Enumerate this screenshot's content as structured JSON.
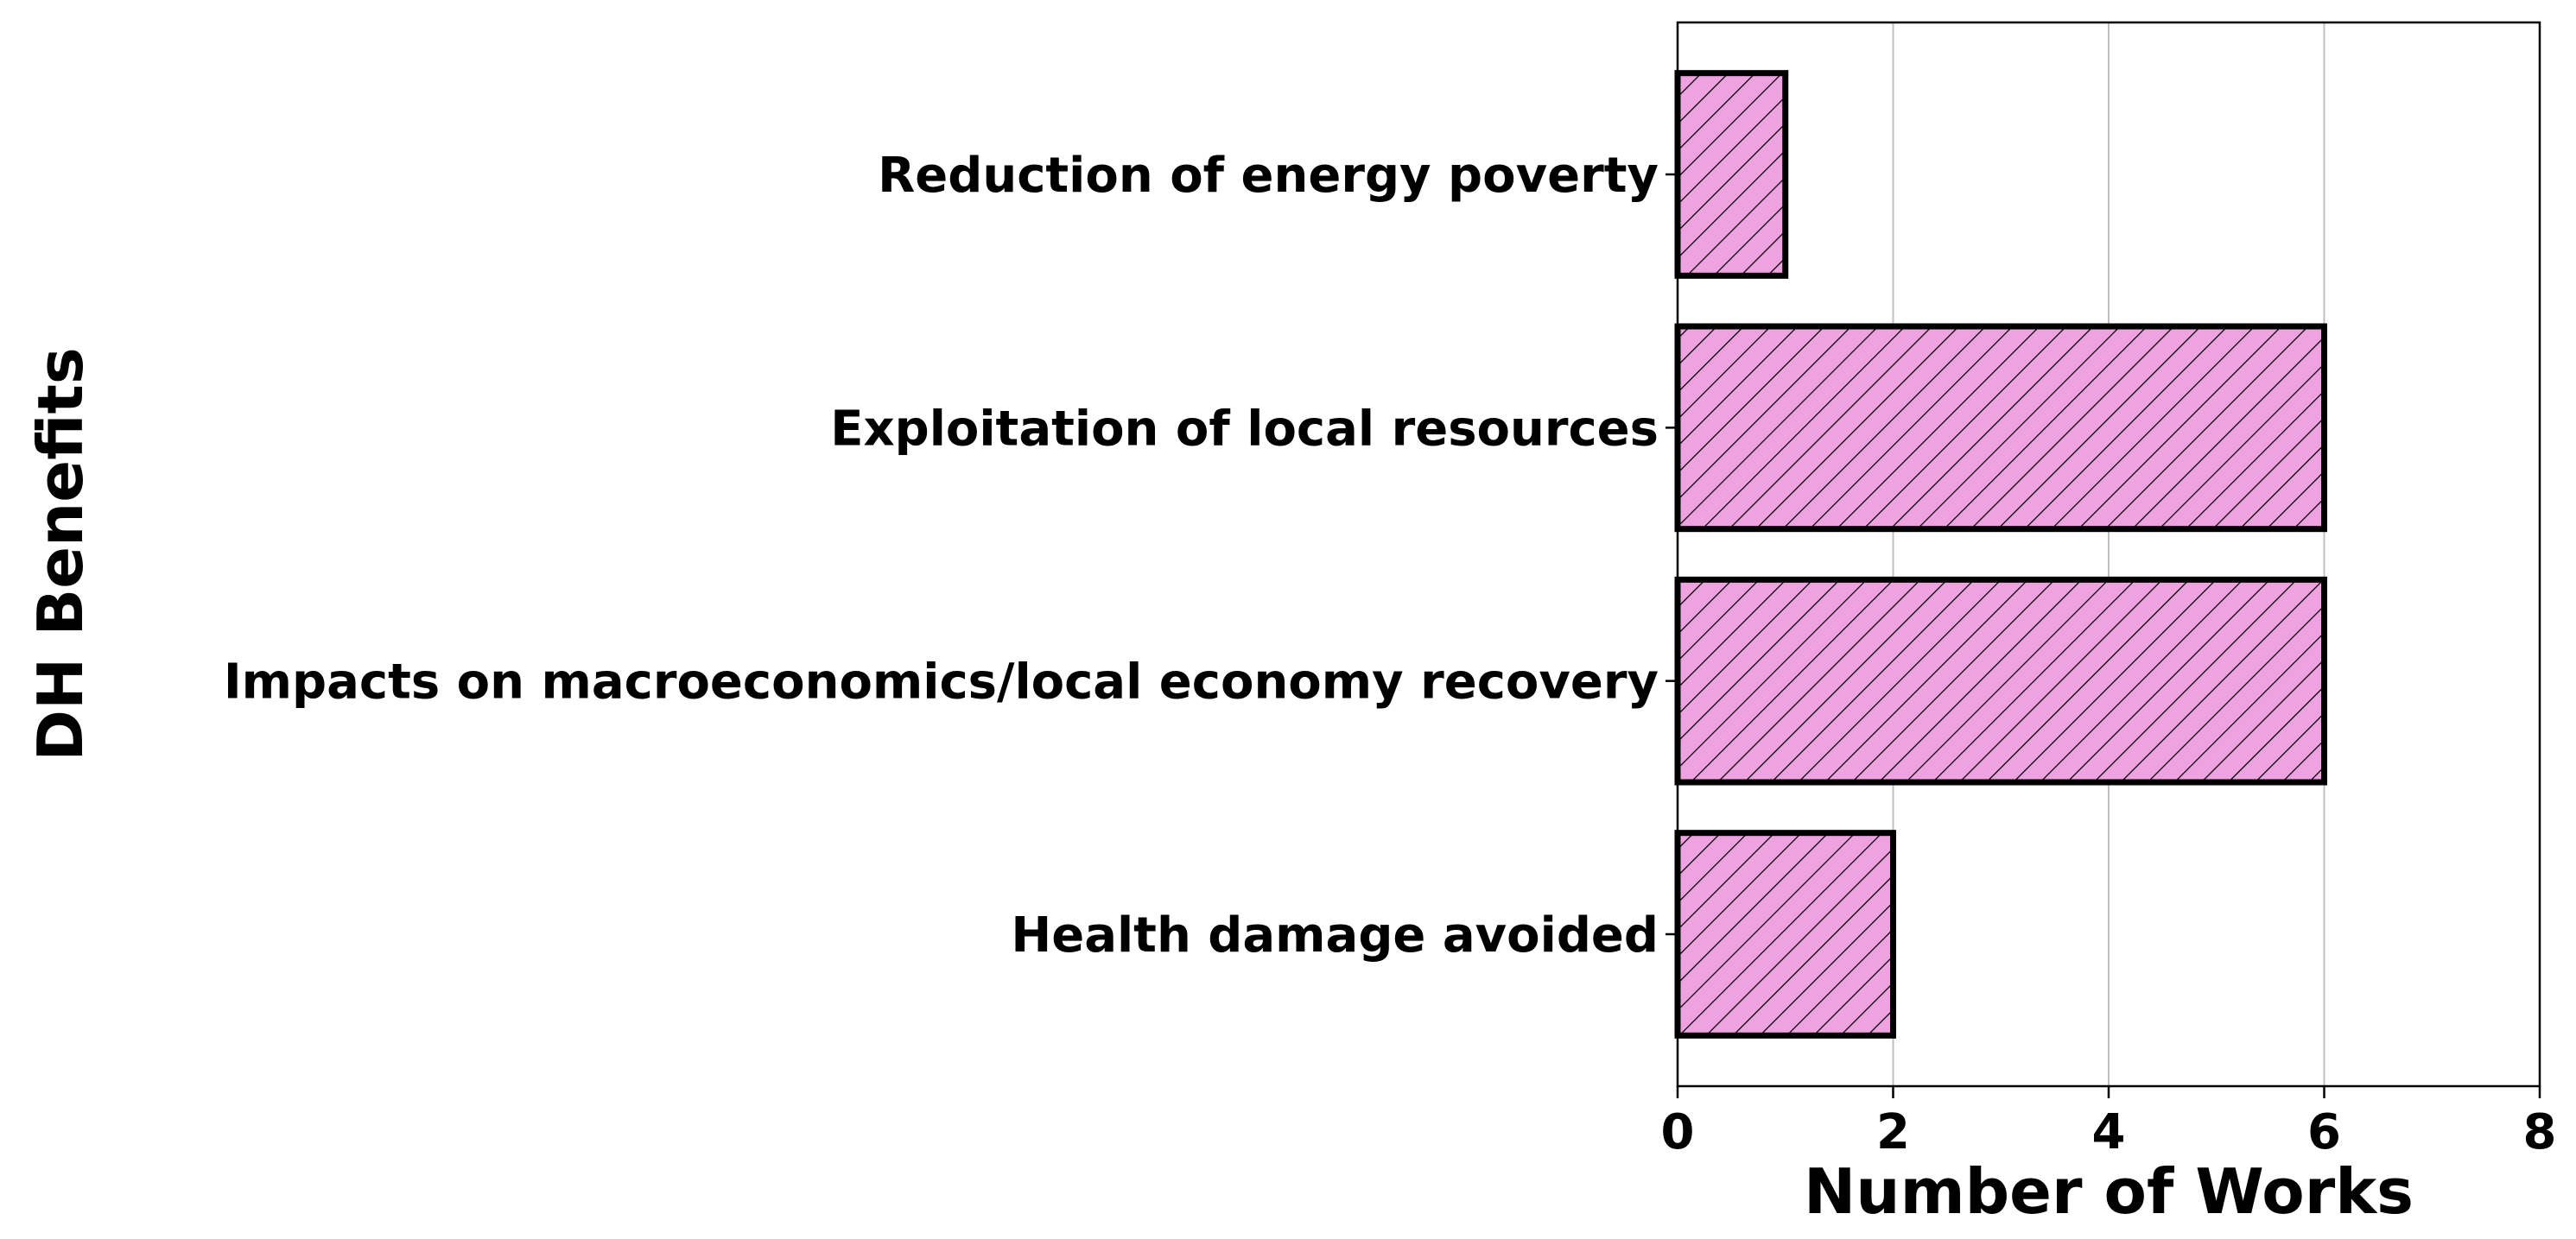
{
  "chart_data": {
    "type": "bar",
    "orientation": "horizontal",
    "categories": [
      "Reduction of energy poverty",
      "Exploitation of local resources",
      "Impacts on macroeconomics/local economy recovery",
      "Health damage avoided"
    ],
    "values": [
      1,
      6,
      6,
      2
    ],
    "title": "",
    "xlabel": "Number of Works",
    "ylabel": "DH Benefits",
    "xlim": [
      0,
      8
    ],
    "xticks": [
      "0",
      "2",
      "4",
      "6",
      "8"
    ],
    "grid": "vertical",
    "legend": "none",
    "colors": {
      "bar_fill": "#EEA2E0",
      "bar_edge": "#000000",
      "hatch": "#000000",
      "grid": "#c0c0c0",
      "axis": "#000000"
    }
  }
}
